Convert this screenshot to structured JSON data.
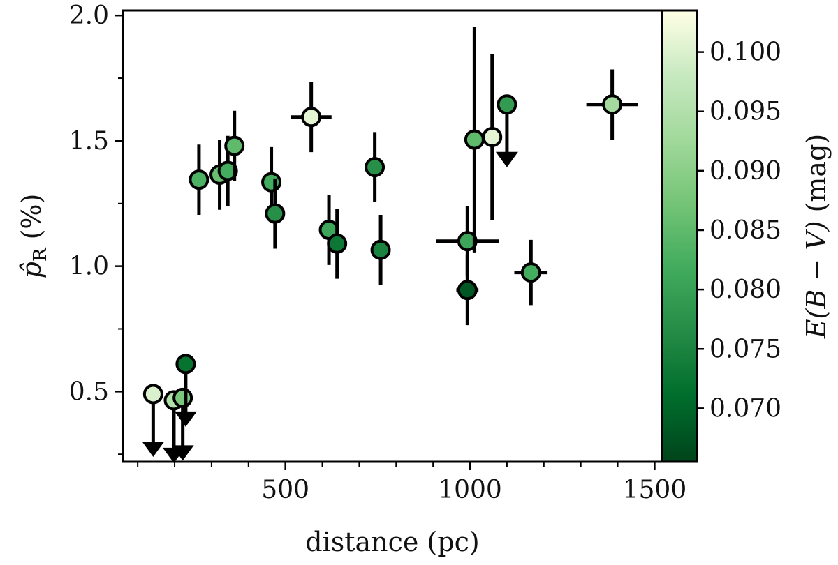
{
  "chart_data": {
    "type": "scatter",
    "xlabel": "distance (pc)",
    "ylabel": "p̂R (%)",
    "ylabel_parts": {
      "main": "p̂",
      "sub": "R",
      "unit": " (%)"
    },
    "xlim": [
      60,
      1520
    ],
    "ylim": [
      0.22,
      2.02
    ],
    "xticks": [
      500,
      1000,
      1500
    ],
    "xticks_minor": [
      100,
      200,
      300,
      400,
      600,
      700,
      800,
      900,
      1100,
      1200,
      1300,
      1400
    ],
    "yticks": [
      0.5,
      1.0,
      1.5,
      2.0
    ],
    "yticks_minor": [
      0.25,
      0.75,
      1.25,
      1.75
    ],
    "colorbar": {
      "label": "E(B − V) (mag)",
      "label_parts": {
        "italic": "E(B − V)",
        "unit": " (mag)"
      },
      "range": [
        0.0655,
        0.1035
      ],
      "ticks": [
        0.07,
        0.075,
        0.08,
        0.085,
        0.09,
        0.095,
        0.1
      ],
      "tick_labels": [
        "0.070",
        "0.075",
        "0.080",
        "0.085",
        "0.090",
        "0.095",
        "0.100"
      ],
      "colormap": [
        "#00441b",
        "#006d2c",
        "#238b45",
        "#41ab5d",
        "#74c476",
        "#a1d99b",
        "#c7e9c0",
        "#ffffe5"
      ]
    },
    "points": [
      {
        "x": 266,
        "y": 1.345,
        "yerr": 0.14,
        "xerr": 0,
        "ebv": 0.083,
        "upper_limit": false
      },
      {
        "x": 322,
        "y": 1.365,
        "yerr": 0.14,
        "xerr": 0,
        "ebv": 0.086,
        "upper_limit": false
      },
      {
        "x": 344,
        "y": 1.38,
        "yerr": 0.14,
        "xerr": 0,
        "ebv": 0.082,
        "upper_limit": false
      },
      {
        "x": 362,
        "y": 1.48,
        "yerr": 0.14,
        "xerr": 0,
        "ebv": 0.085,
        "upper_limit": false
      },
      {
        "x": 462,
        "y": 1.335,
        "yerr": 0.14,
        "xerr": 0,
        "ebv": 0.082,
        "upper_limit": false
      },
      {
        "x": 472,
        "y": 1.21,
        "yerr": 0.14,
        "xerr": 25,
        "ebv": 0.077,
        "upper_limit": false
      },
      {
        "x": 570,
        "y": 1.595,
        "yerr": 0.14,
        "xerr": 55,
        "ebv": 0.101,
        "upper_limit": false
      },
      {
        "x": 618,
        "y": 1.145,
        "yerr": 0.14,
        "xerr": 0,
        "ebv": 0.081,
        "upper_limit": false
      },
      {
        "x": 640,
        "y": 1.09,
        "yerr": 0.14,
        "xerr": 0,
        "ebv": 0.073,
        "upper_limit": false
      },
      {
        "x": 742,
        "y": 1.395,
        "yerr": 0.14,
        "xerr": 15,
        "ebv": 0.077,
        "upper_limit": false
      },
      {
        "x": 758,
        "y": 1.065,
        "yerr": 0.14,
        "xerr": 20,
        "ebv": 0.075,
        "upper_limit": false
      },
      {
        "x": 993,
        "y": 1.1,
        "yerr": 0.14,
        "xerr": 85,
        "ebv": 0.081,
        "upper_limit": false
      },
      {
        "x": 993,
        "y": 0.905,
        "yerr": 0.14,
        "xerr": 30,
        "ebv": 0.068,
        "upper_limit": false
      },
      {
        "x": 1012,
        "y": 1.505,
        "yerr": 0.45,
        "xerr": 20,
        "ebv": 0.085,
        "upper_limit": false
      },
      {
        "x": 1060,
        "y": 1.515,
        "yerr": 0.33,
        "xerr": 0,
        "ebv": 0.101,
        "upper_limit": false
      },
      {
        "x": 1100,
        "y": 1.645,
        "yerr": 0,
        "xerr": 0,
        "ebv": 0.079,
        "upper_limit": true
      },
      {
        "x": 1165,
        "y": 0.975,
        "yerr": 0.13,
        "xerr": 45,
        "ebv": 0.082,
        "upper_limit": false
      },
      {
        "x": 1385,
        "y": 1.645,
        "yerr": 0.14,
        "xerr": 70,
        "ebv": 0.093,
        "upper_limit": false
      },
      {
        "x": 142,
        "y": 0.49,
        "yerr": 0,
        "xerr": 0,
        "ebv": 0.1,
        "upper_limit": true
      },
      {
        "x": 198,
        "y": 0.465,
        "yerr": 0,
        "xerr": 0,
        "ebv": 0.095,
        "upper_limit": true
      },
      {
        "x": 222,
        "y": 0.475,
        "yerr": 0,
        "xerr": 0,
        "ebv": 0.088,
        "upper_limit": true
      },
      {
        "x": 230,
        "y": 0.61,
        "yerr": 0,
        "xerr": 0,
        "ebv": 0.072,
        "upper_limit": true
      }
    ]
  }
}
